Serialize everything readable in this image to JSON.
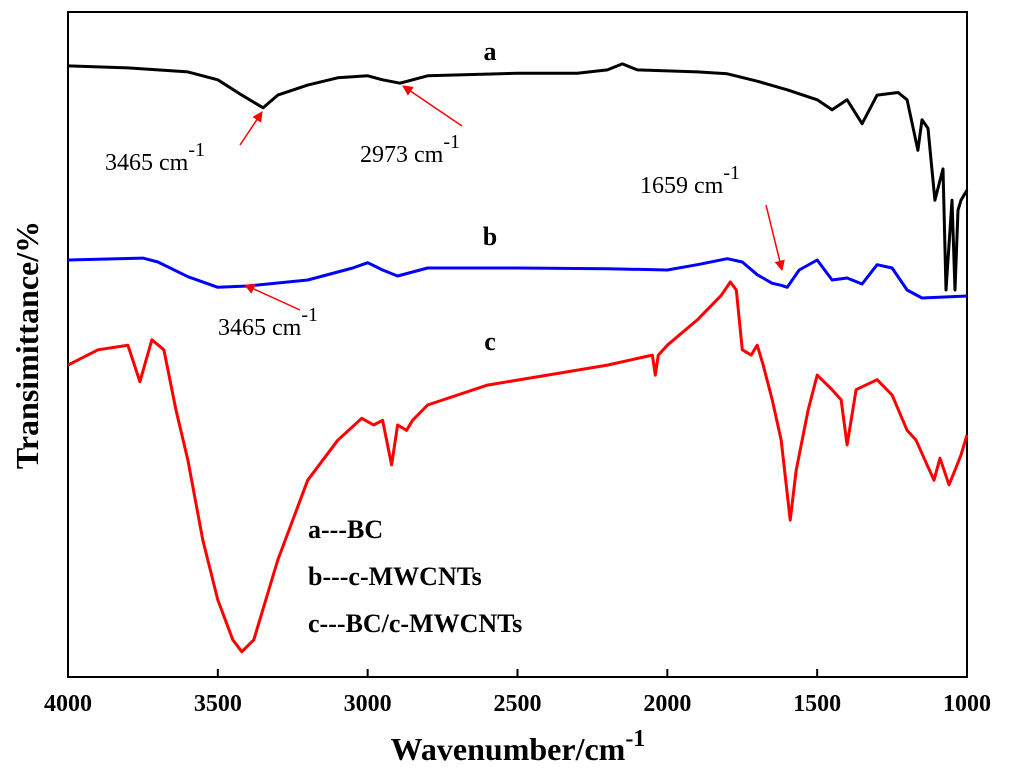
{
  "chart_data": {
    "type": "line",
    "x_label": {
      "text": "Wavenumber/cm",
      "sup": "-1"
    },
    "y_label": "Transimittance/%",
    "xlim": [
      4000,
      1000
    ],
    "ylim": [
      0,
      100
    ],
    "xticks": [
      4000,
      3500,
      3000,
      2500,
      2000,
      1500,
      1000
    ],
    "series": [
      {
        "name": "a",
        "color": "#000000",
        "x": [
          4000,
          3800,
          3600,
          3500,
          3420,
          3349,
          3300,
          3200,
          3100,
          3000,
          2950,
          2892,
          2800,
          2500,
          2300,
          2200,
          2150,
          2100,
          1900,
          1800,
          1700,
          1600,
          1500,
          1450,
          1400,
          1350,
          1300,
          1230,
          1200,
          1164,
          1150,
          1130,
          1107,
          1080,
          1070,
          1050,
          1040,
          1030,
          1020,
          1000
        ],
        "values": [
          91.9,
          91.6,
          91.0,
          89.8,
          87.5,
          85.6,
          87.5,
          89.0,
          90.1,
          90.4,
          89.8,
          89.3,
          90.4,
          90.8,
          90.8,
          91.3,
          92.2,
          91.3,
          91.0,
          90.7,
          89.6,
          88.3,
          86.8,
          85.3,
          86.8,
          83.2,
          87.5,
          87.9,
          86.8,
          79.2,
          83.8,
          82.5,
          71.7,
          76.4,
          58.2,
          71.7,
          58.2,
          70.2,
          71.7,
          73.2
        ]
      },
      {
        "name": "b",
        "color": "#0000ff",
        "x": [
          4000,
          3750,
          3700,
          3600,
          3500,
          3400,
          3200,
          3050,
          3000,
          2950,
          2900,
          2850,
          2800,
          2500,
          2200,
          2000,
          1900,
          1800,
          1750,
          1700,
          1650,
          1620,
          1600,
          1560,
          1500,
          1450,
          1400,
          1350,
          1300,
          1250,
          1200,
          1150,
          1000
        ],
        "values": [
          62.7,
          63.0,
          62.4,
          60.2,
          58.6,
          58.8,
          59.7,
          61.5,
          62.3,
          61.2,
          60.3,
          60.9,
          61.5,
          61.5,
          61.4,
          61.2,
          62.0,
          62.9,
          62.4,
          60.5,
          59.2,
          58.9,
          58.6,
          61.2,
          62.7,
          59.7,
          60.0,
          59.1,
          62.0,
          61.5,
          58.2,
          57.0,
          57.3
        ]
      },
      {
        "name": "c",
        "color": "#ff0000",
        "x": [
          4000,
          3900,
          3800,
          3760,
          3720,
          3680,
          3640,
          3600,
          3550,
          3500,
          3450,
          3420,
          3380,
          3300,
          3200,
          3100,
          3020,
          2980,
          2950,
          2920,
          2900,
          2870,
          2850,
          2800,
          2600,
          2400,
          2200,
          2050,
          2040,
          2030,
          2000,
          1900,
          1820,
          1790,
          1770,
          1750,
          1720,
          1700,
          1680,
          1650,
          1620,
          1590,
          1570,
          1530,
          1500,
          1450,
          1420,
          1400,
          1370,
          1300,
          1250,
          1200,
          1170,
          1140,
          1110,
          1090,
          1060,
          1040,
          1020,
          1000
        ],
        "values": [
          46.9,
          49.2,
          49.9,
          44.4,
          50.7,
          49.2,
          40.2,
          32.6,
          20.6,
          11.6,
          5.6,
          3.8,
          5.6,
          17.6,
          29.6,
          35.6,
          38.9,
          37.9,
          38.6,
          31.9,
          37.9,
          37.1,
          38.6,
          40.9,
          43.9,
          45.4,
          46.9,
          48.4,
          45.4,
          48.4,
          49.9,
          53.7,
          57.4,
          59.4,
          58.2,
          49.2,
          48.4,
          49.9,
          46.9,
          41.7,
          35.6,
          23.6,
          31.1,
          40.2,
          45.4,
          43.2,
          41.7,
          34.9,
          43.2,
          44.7,
          42.4,
          37.1,
          35.6,
          32.6,
          29.6,
          32.9,
          28.9,
          31.1,
          33.4,
          36.4
        ]
      }
    ],
    "legend": [
      "a---BC",
      "b---c-MWCNTs",
      "c---BC/c-MWCNTs"
    ],
    "annotations": [
      {
        "text": "3465 cm",
        "sup": "-1"
      },
      {
        "text": "2973 cm",
        "sup": "-1"
      },
      {
        "text": "1659 cm",
        "sup": "-1"
      },
      {
        "text": "3465 cm",
        "sup": "-1"
      }
    ]
  }
}
